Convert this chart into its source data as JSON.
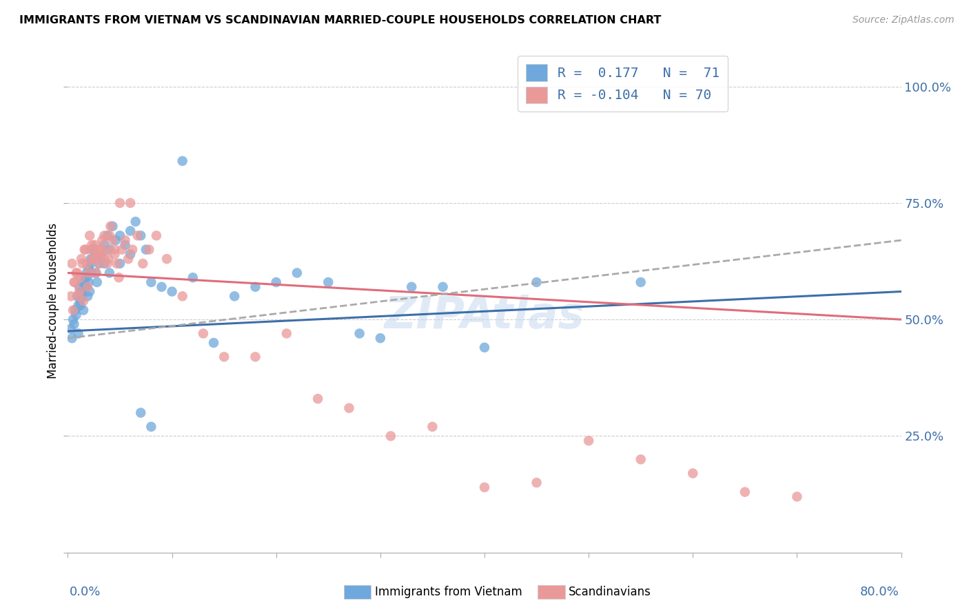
{
  "title": "IMMIGRANTS FROM VIETNAM VS SCANDINAVIAN MARRIED-COUPLE HOUSEHOLDS CORRELATION CHART",
  "source": "Source: ZipAtlas.com",
  "ylabel": "Married-couple Households",
  "blue_color": "#6fa8dc",
  "pink_color": "#ea9999",
  "blue_line_color": "#3d6fa8",
  "pink_line_color": "#e06c7a",
  "dashed_line_color": "#aaaaaa",
  "watermark_color": "#c5d9ef",
  "watermark_text": "ZIPAtlas",
  "legend_text_color": "#3d6fa8",
  "xlim": [
    0,
    80
  ],
  "ylim": [
    0,
    108
  ],
  "ytick_vals": [
    0,
    25,
    50,
    75,
    100
  ],
  "ytick_labels": [
    "",
    "25.0%",
    "50.0%",
    "75.0%",
    "100.0%"
  ],
  "xtick_vals": [
    0,
    10,
    20,
    30,
    40,
    50,
    60,
    70,
    80
  ],
  "blue_scatter_x": [
    0.3,
    0.5,
    0.7,
    0.9,
    1.0,
    1.1,
    1.2,
    1.3,
    1.4,
    1.5,
    1.6,
    1.7,
    1.8,
    1.9,
    2.0,
    2.1,
    2.2,
    2.3,
    2.4,
    2.5,
    2.7,
    2.8,
    3.0,
    3.2,
    3.5,
    3.8,
    4.0,
    4.3,
    4.6,
    5.0,
    5.5,
    6.0,
    6.5,
    7.0,
    7.5,
    8.0,
    9.0,
    10.0,
    11.0,
    12.0,
    14.0,
    16.0,
    18.0,
    20.0,
    22.0,
    25.0,
    28.0,
    30.0,
    33.0,
    36.0,
    40.0,
    45.0,
    55.0,
    0.4,
    0.6,
    0.8,
    1.0,
    1.2,
    1.4,
    1.6,
    1.8,
    2.0,
    2.2,
    2.5,
    3.0,
    3.5,
    4.0,
    5.0,
    6.0,
    7.0,
    8.0
  ],
  "blue_scatter_y": [
    48,
    50,
    52,
    55,
    53,
    57,
    54,
    56,
    58,
    52,
    59,
    57,
    60,
    55,
    58,
    56,
    62,
    60,
    63,
    65,
    60,
    58,
    62,
    64,
    66,
    68,
    65,
    70,
    67,
    68,
    66,
    69,
    71,
    68,
    65,
    58,
    57,
    56,
    84,
    59,
    45,
    55,
    57,
    58,
    60,
    58,
    47,
    46,
    57,
    57,
    44,
    58,
    58,
    46,
    49,
    51,
    47,
    53,
    55,
    57,
    59,
    61,
    63,
    65,
    64,
    62,
    60,
    62,
    64,
    30,
    27
  ],
  "pink_scatter_x": [
    0.3,
    0.5,
    0.7,
    0.9,
    1.1,
    1.3,
    1.5,
    1.7,
    1.9,
    2.1,
    2.3,
    2.5,
    2.7,
    2.9,
    3.1,
    3.3,
    3.5,
    3.7,
    3.9,
    4.1,
    4.3,
    4.5,
    4.7,
    4.9,
    5.2,
    5.5,
    5.8,
    6.2,
    6.7,
    7.2,
    7.8,
    8.5,
    9.5,
    11.0,
    13.0,
    15.0,
    18.0,
    21.0,
    24.0,
    27.0,
    31.0,
    35.0,
    40.0,
    45.0,
    50.0,
    55.0,
    60.0,
    65.0,
    70.0,
    0.4,
    0.6,
    0.8,
    1.0,
    1.2,
    1.4,
    1.6,
    1.8,
    2.0,
    2.2,
    2.4,
    2.6,
    2.8,
    3.0,
    3.2,
    3.5,
    3.8,
    4.0,
    4.5,
    5.0,
    6.0
  ],
  "pink_scatter_y": [
    55,
    52,
    58,
    60,
    56,
    63,
    54,
    65,
    57,
    68,
    66,
    63,
    60,
    65,
    64,
    67,
    68,
    65,
    63,
    70,
    67,
    64,
    62,
    59,
    65,
    67,
    63,
    65,
    68,
    62,
    65,
    68,
    63,
    55,
    47,
    42,
    42,
    47,
    33,
    31,
    25,
    27,
    14,
    15,
    24,
    20,
    17,
    13,
    12,
    62,
    58,
    60,
    55,
    59,
    62,
    65,
    62,
    60,
    65,
    63,
    66,
    64,
    62,
    65,
    63,
    62,
    68,
    65,
    75,
    75
  ],
  "blue_regression": [
    47.5,
    56.0
  ],
  "pink_regression": [
    60.0,
    50.0
  ],
  "dashed_regression": [
    46.0,
    67.0
  ]
}
